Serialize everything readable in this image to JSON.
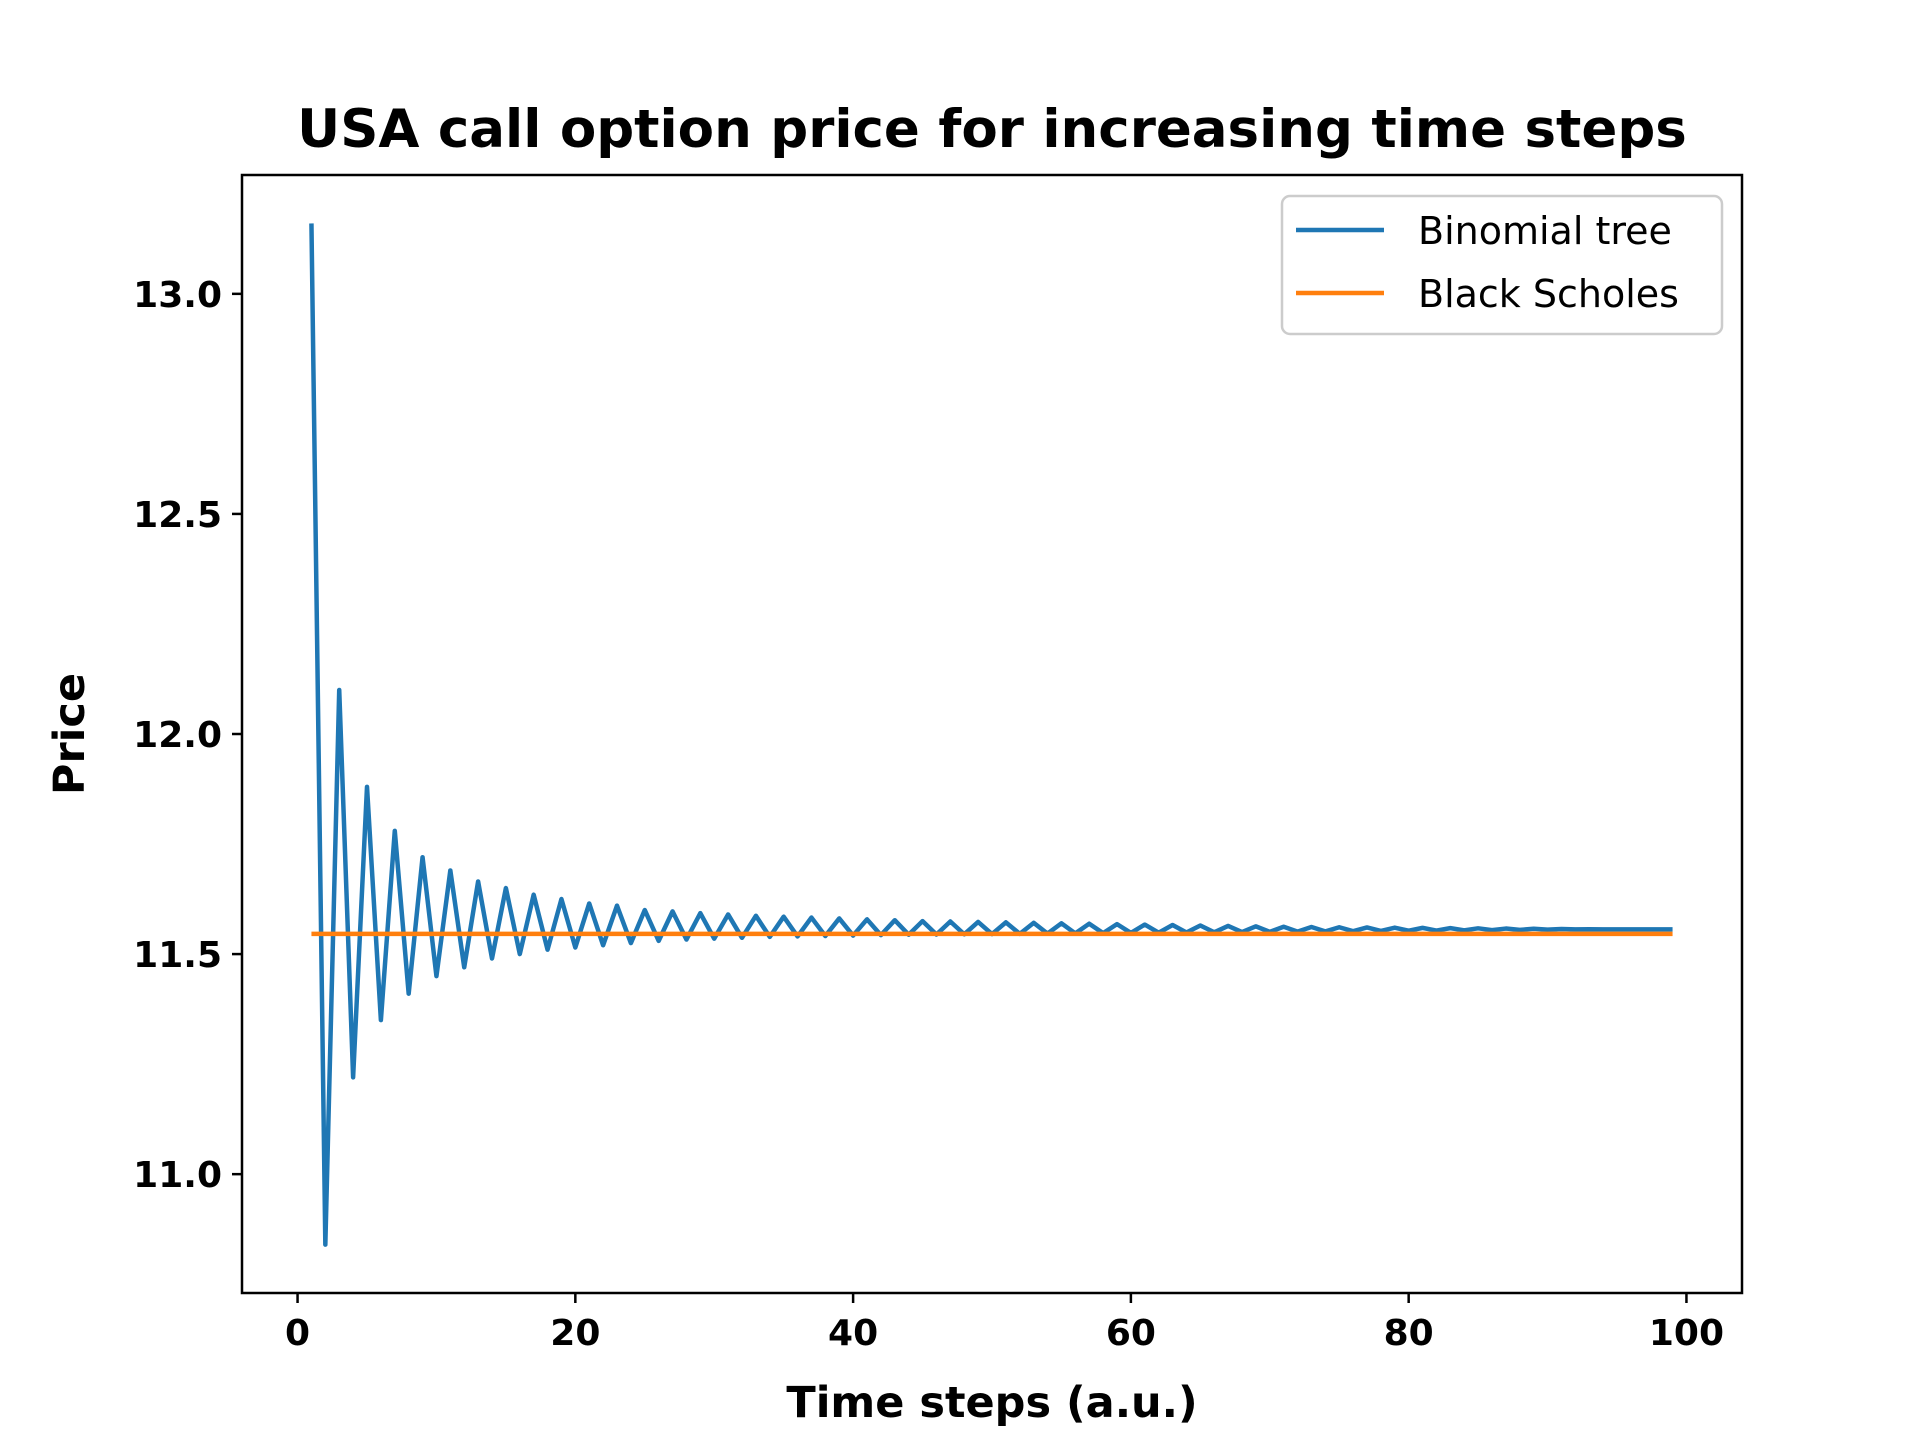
{
  "chart_data": {
    "type": "line",
    "title": "USA call option price for increasing time steps",
    "xlabel": "Time steps (a.u.)",
    "ylabel": "Price",
    "xlim": [
      -4,
      104
    ],
    "ylim": [
      10.73,
      13.27
    ],
    "xticks": [
      0,
      20,
      40,
      60,
      80,
      100
    ],
    "xtick_labels": [
      "0",
      "20",
      "40",
      "60",
      "80",
      "100"
    ],
    "yticks": [
      11.0,
      11.5,
      12.0,
      12.5,
      13.0
    ],
    "ytick_labels": [
      "11.0",
      "11.5",
      "12.0",
      "12.5",
      "13.0"
    ],
    "grid": false,
    "legend_position": "top-right",
    "series": [
      {
        "name": "Binomial tree",
        "color": "#1f77b4",
        "x": [
          1,
          2,
          3,
          4,
          5,
          6,
          7,
          8,
          9,
          10,
          11,
          12,
          13,
          14,
          15,
          16,
          17,
          18,
          19,
          20,
          21,
          22,
          23,
          24,
          25,
          26,
          27,
          28,
          29,
          30,
          31,
          32,
          33,
          34,
          35,
          36,
          37,
          38,
          39,
          40,
          41,
          42,
          43,
          44,
          45,
          46,
          47,
          48,
          49,
          50,
          51,
          52,
          53,
          54,
          55,
          56,
          57,
          58,
          59,
          60,
          61,
          62,
          63,
          64,
          65,
          66,
          67,
          68,
          69,
          70,
          71,
          72,
          73,
          74,
          75,
          76,
          77,
          78,
          79,
          80,
          81,
          82,
          83,
          84,
          85,
          86,
          87,
          88,
          89,
          90,
          91,
          92,
          93,
          94,
          95,
          96,
          97,
          98,
          99
        ],
        "values": [
          13.16,
          10.84,
          12.1,
          11.22,
          11.88,
          11.35,
          11.78,
          11.41,
          11.72,
          11.45,
          11.69,
          11.47,
          11.665,
          11.49,
          11.65,
          11.5,
          11.635,
          11.51,
          11.625,
          11.515,
          11.615,
          11.52,
          11.61,
          11.525,
          11.6,
          11.53,
          11.597,
          11.533,
          11.593,
          11.535,
          11.59,
          11.537,
          11.587,
          11.539,
          11.585,
          11.54,
          11.583,
          11.541,
          11.581,
          11.542,
          11.579,
          11.543,
          11.577,
          11.544,
          11.575,
          11.5445,
          11.574,
          11.545,
          11.573,
          11.5455,
          11.572,
          11.546,
          11.571,
          11.5465,
          11.57,
          11.547,
          11.569,
          11.5475,
          11.568,
          11.548,
          11.567,
          11.5485,
          11.566,
          11.549,
          11.565,
          11.5495,
          11.564,
          11.55,
          11.563,
          11.5505,
          11.562,
          11.551,
          11.5615,
          11.5515,
          11.561,
          11.552,
          11.5605,
          11.5525,
          11.56,
          11.553,
          11.5595,
          11.5535,
          11.559,
          11.554,
          11.5585,
          11.5545,
          11.558,
          11.555,
          11.5575,
          11.5555,
          11.557,
          11.556,
          11.5565,
          11.556,
          11.556,
          11.556,
          11.556,
          11.556,
          11.556
        ]
      },
      {
        "name": "Black Scholes",
        "color": "#ff7f0e",
        "x": [
          1,
          99
        ],
        "values": [
          11.546,
          11.546
        ]
      }
    ]
  }
}
